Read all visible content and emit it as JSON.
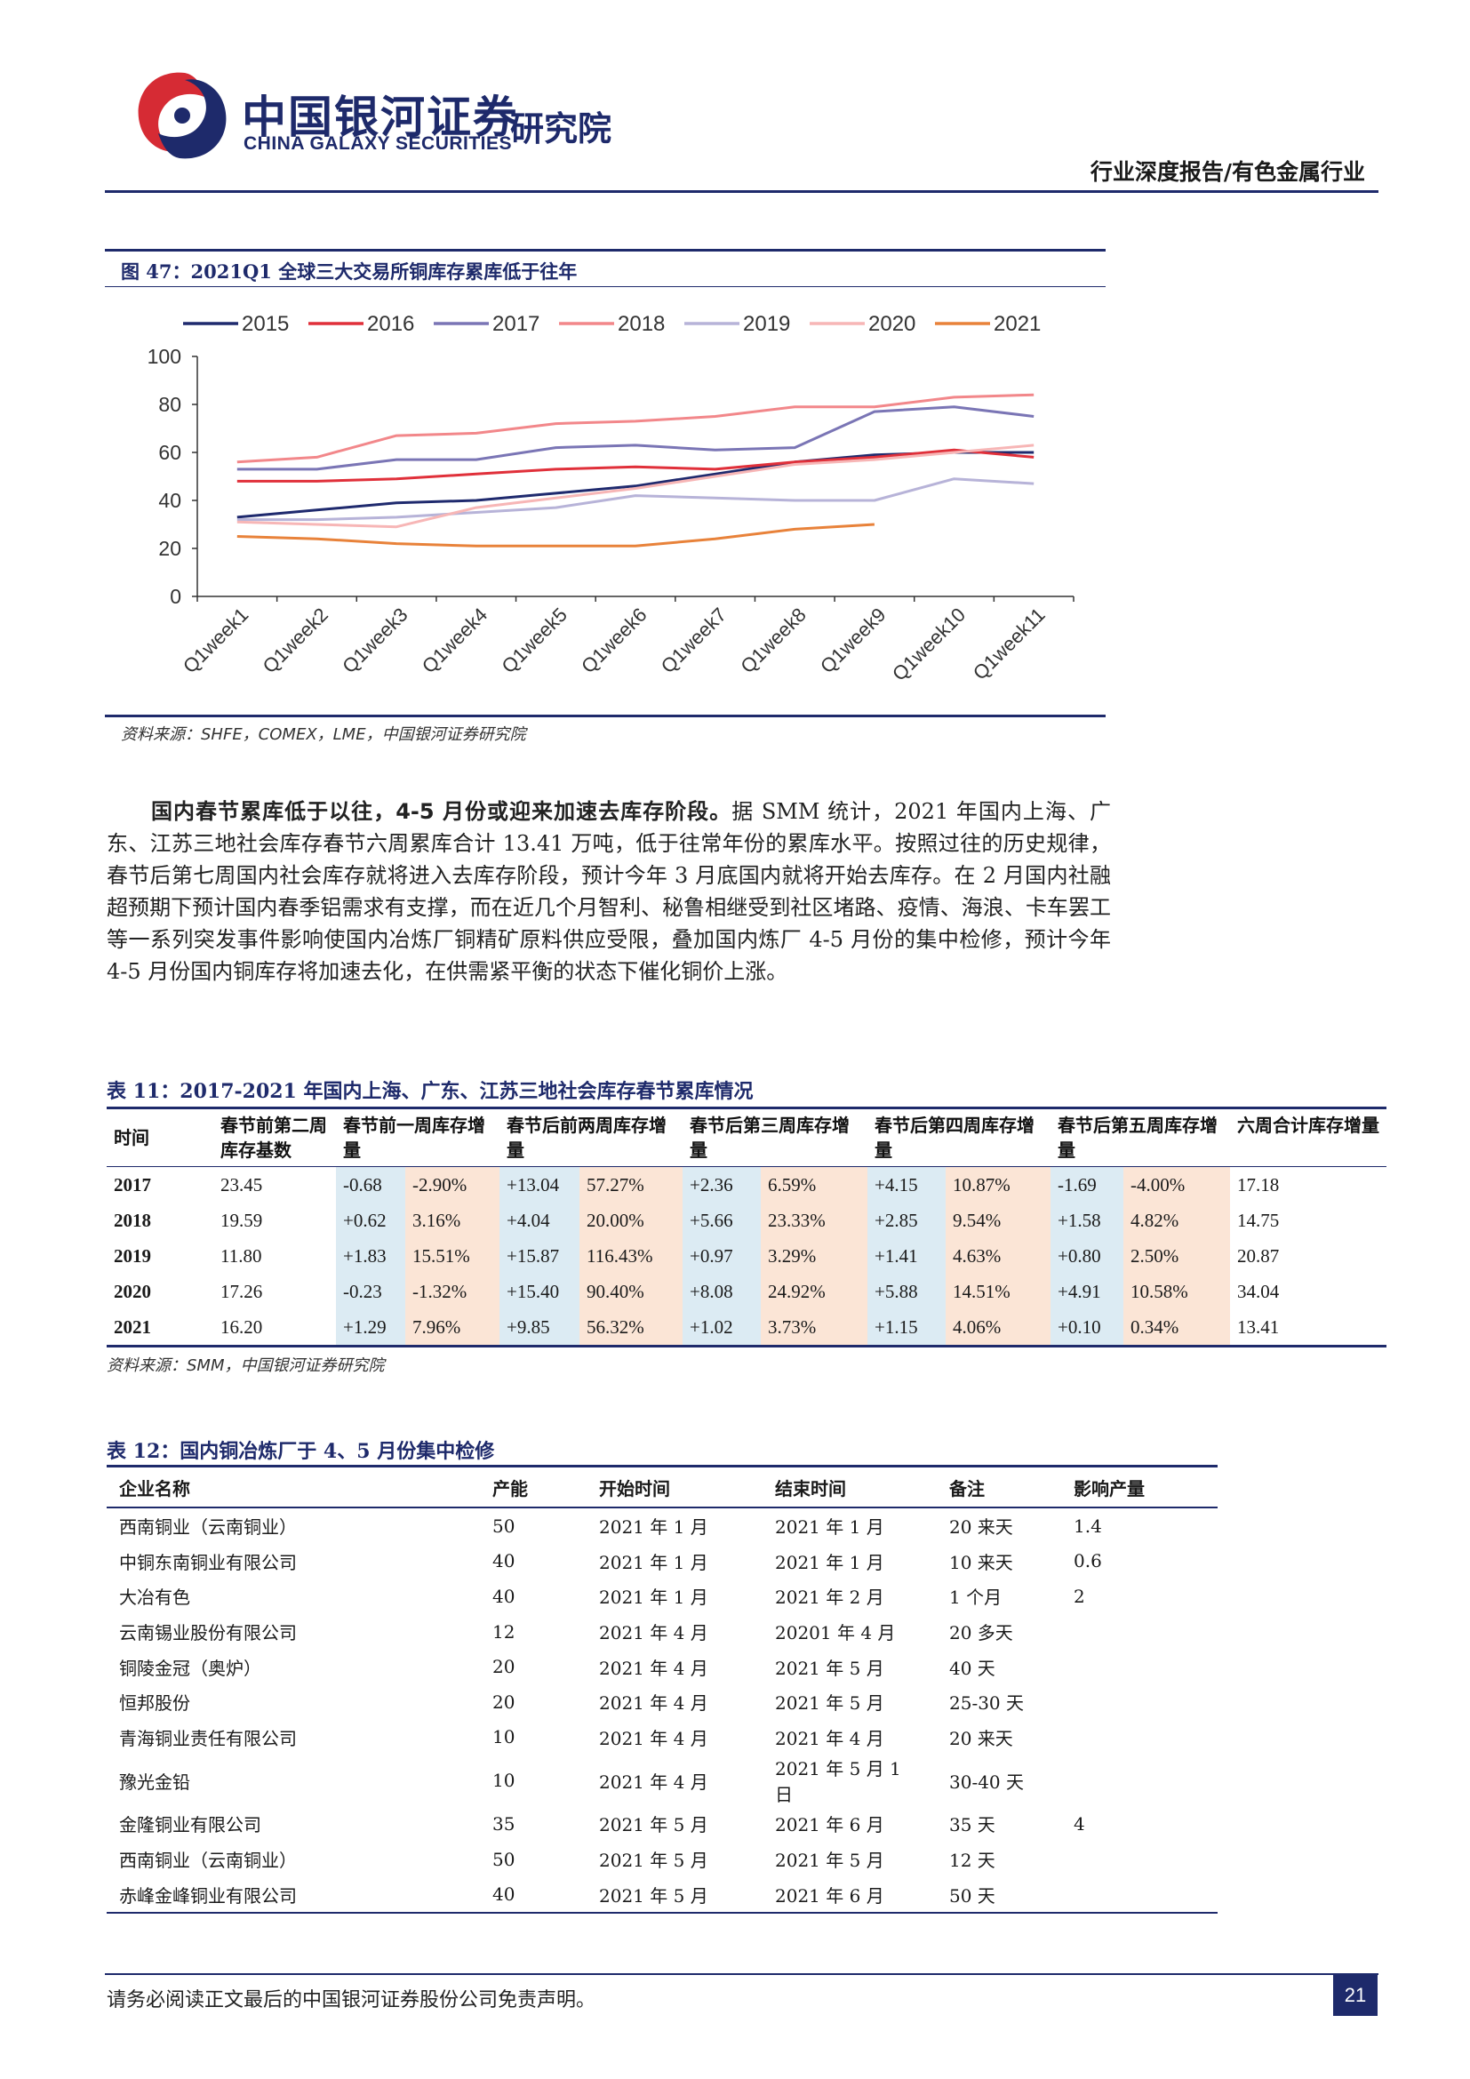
{
  "header": {
    "brand_cn": "中国银河证券",
    "brand_en": "CHINA GALAXY SECURITIES",
    "brand_institute": "研究院",
    "report_category": "行业深度报告/有色金属行业"
  },
  "figure": {
    "title": "图 47：2021Q1 全球三大交易所铜库存累库低于往年",
    "source": "资料来源：SHFE，COMEX，LME，中国银河证券研究院"
  },
  "chart_data": {
    "type": "line",
    "title": "",
    "xlabel": "",
    "ylabel": "",
    "ylim": [
      0,
      100
    ],
    "yticks": [
      "0",
      "20",
      "40",
      "60",
      "80",
      "100"
    ],
    "legend_position": "top",
    "grid": false,
    "categories": [
      "Q1week1",
      "Q1week2",
      "Q1week3",
      "Q1week4",
      "Q1week5",
      "Q1week6",
      "Q1week7",
      "Q1week8",
      "Q1week9",
      "Q1week10",
      "Q1week11"
    ],
    "series": [
      {
        "name": "2015",
        "color": "#1f2a6e",
        "values": [
          33,
          36,
          39,
          40,
          43,
          46,
          51,
          56,
          59,
          60,
          60
        ]
      },
      {
        "name": "2016",
        "color": "#e0303a",
        "values": [
          48,
          48,
          49,
          51,
          53,
          54,
          53,
          56,
          58,
          61,
          58
        ]
      },
      {
        "name": "2017",
        "color": "#7a75b5",
        "values": [
          53,
          53,
          57,
          57,
          62,
          63,
          61,
          62,
          77,
          79,
          75
        ]
      },
      {
        "name": "2018",
        "color": "#f2878a",
        "values": [
          56,
          58,
          67,
          68,
          72,
          73,
          75,
          79,
          79,
          83,
          84
        ]
      },
      {
        "name": "2019",
        "color": "#b7b3d8",
        "values": [
          32,
          32,
          33,
          35,
          37,
          42,
          41,
          40,
          40,
          49,
          47
        ]
      },
      {
        "name": "2020",
        "color": "#f7b6b6",
        "values": [
          31,
          30,
          29,
          37,
          41,
          45,
          50,
          55,
          57,
          60,
          63
        ]
      },
      {
        "name": "2021",
        "color": "#e8823a",
        "values": [
          25,
          24,
          22,
          21,
          21,
          21,
          24,
          28,
          30,
          null,
          null
        ]
      }
    ]
  },
  "paragraph": {
    "lead": "国内春节累库低于以往，4-5 月份或迎来加速去库存阶段。",
    "body": "据 SMM 统计，2021 年国内上海、广东、江苏三地社会库存春节六周累库合计 13.41 万吨，低于往常年份的累库水平。按照过往的历史规律，春节后第七周国内社会库存就将进入去库存阶段，预计今年 3 月底国内就将开始去库存。在 2 月国内社融超预期下预计国内春季铝需求有支撑，而在近几个月智利、秘鲁相继受到社区堵路、疫情、海浪、卡车罢工等一系列突发事件影响使国内冶炼厂铜精矿原料供应受限，叠加国内炼厂 4-5 月份的集中检修，预计今年 4-5 月份国内铜库存将加速去化，在供需紧平衡的状态下催化铜价上涨。"
  },
  "table11": {
    "title": "表 11：2017-2021 年国内上海、广东、江苏三地社会库存春节累库情况",
    "headers": [
      "时间",
      "春节前第二周库存基数",
      "春节前一周库存增量",
      "春节后前两周库存增量",
      "春节后第三周库存增量",
      "春节后第四周库存增量",
      "春节后第五周库存增量",
      "六周合计库存增量"
    ],
    "rows": [
      [
        "2017",
        "23.45",
        "-0.68",
        "-2.90%",
        "+13.04",
        "57.27%",
        "+2.36",
        "6.59%",
        "+4.15",
        "10.87%",
        "-1.69",
        "-4.00%",
        "17.18"
      ],
      [
        "2018",
        "19.59",
        "+0.62",
        "3.16%",
        "+4.04",
        "20.00%",
        "+5.66",
        "23.33%",
        "+2.85",
        "9.54%",
        "+1.58",
        "4.82%",
        "14.75"
      ],
      [
        "2019",
        "11.80",
        "+1.83",
        "15.51%",
        "+15.87",
        "116.43%",
        "+0.97",
        "3.29%",
        "+1.41",
        "4.63%",
        "+0.80",
        "2.50%",
        "20.87"
      ],
      [
        "2020",
        "17.26",
        "-0.23",
        "-1.32%",
        "+15.40",
        "90.40%",
        "+8.08",
        "24.92%",
        "+5.88",
        "14.51%",
        "+4.91",
        "10.58%",
        "34.04"
      ],
      [
        "2021",
        "16.20",
        "+1.29",
        "7.96%",
        "+9.85",
        "56.32%",
        "+1.02",
        "3.73%",
        "+1.15",
        "4.06%",
        "+0.10",
        "0.34%",
        "13.41"
      ]
    ],
    "source": "资料来源：SMM，中国银河证券研究院"
  },
  "table12": {
    "title": "表 12：国内铜冶炼厂于 4、5 月份集中检修",
    "headers": [
      "企业名称",
      "产能",
      "开始时间",
      "结束时间",
      "备注",
      "影响产量"
    ],
    "rows": [
      [
        "西南铜业（云南铜业）",
        "50",
        "2021 年 1 月",
        "2021 年 1 月",
        "20 来天",
        "1.4"
      ],
      [
        "中铜东南铜业有限公司",
        "40",
        "2021 年 1 月",
        "2021 年 1 月",
        "10 来天",
        "0.6"
      ],
      [
        "大冶有色",
        "40",
        "2021 年 1 月",
        "2021 年 2 月",
        "1 个月",
        "2"
      ],
      [
        "云南锡业股份有限公司",
        "12",
        "2021 年 4 月",
        "20201 年 4 月",
        "20 多天",
        ""
      ],
      [
        "铜陵金冠（奥炉）",
        "20",
        "2021 年 4 月",
        "2021 年 5 月",
        "40 天",
        ""
      ],
      [
        "恒邦股份",
        "20",
        "2021 年 4 月",
        "2021 年 5 月",
        "25-30 天",
        ""
      ],
      [
        "青海铜业责任有限公司",
        "10",
        "2021 年 4 月",
        "2021 年 4 月",
        "20 来天",
        ""
      ],
      [
        "豫光金铅",
        "10",
        "2021 年 4 月",
        "2021 年 5 月 1 日",
        "30-40 天",
        ""
      ],
      [
        "金隆铜业有限公司",
        "35",
        "2021 年 5 月",
        "2021 年 6 月",
        "35 天",
        "4"
      ],
      [
        "西南铜业（云南铜业）",
        "50",
        "2021 年 5 月",
        "2021 年 5 月",
        "12 天",
        ""
      ],
      [
        "赤峰金峰铜业有限公司",
        "40",
        "2021 年 5 月",
        "2021 年 6 月",
        "50 天",
        ""
      ]
    ]
  },
  "footer": {
    "disclaimer": "请务必阅读正文最后的中国银河证券股份公司免责声明。",
    "page": "21"
  }
}
